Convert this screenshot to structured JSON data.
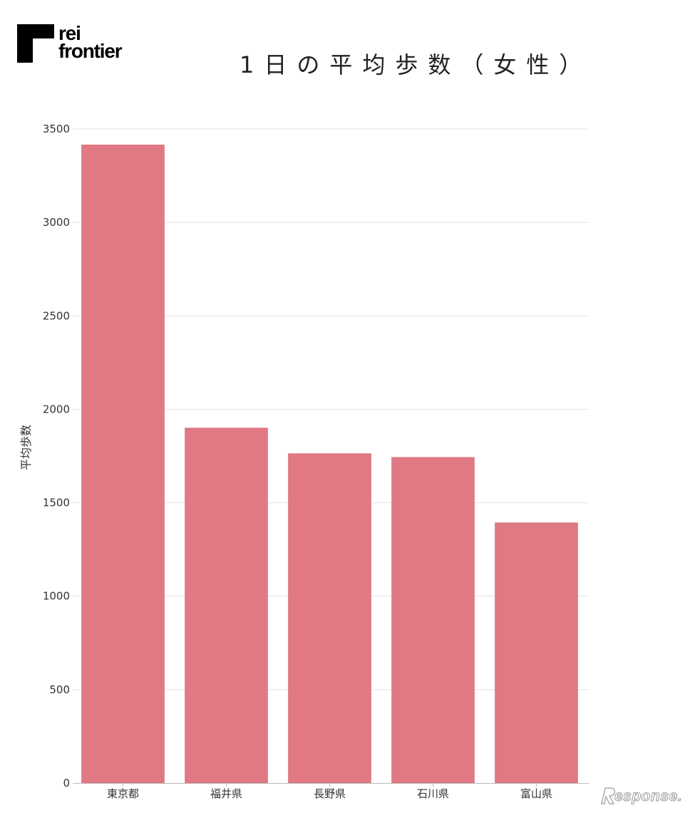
{
  "logo": {
    "line1": "rei",
    "line2": "frontier"
  },
  "watermark": {
    "text": "esponse."
  },
  "chart_data": {
    "type": "bar",
    "title": "1日の平均歩数（女性）",
    "xlabel": "",
    "ylabel": "平均歩数",
    "categories": [
      "東京都",
      "福井県",
      "長野県",
      "石川県",
      "富山県"
    ],
    "values": [
      3415,
      1900,
      1763,
      1743,
      1393
    ],
    "ylim": [
      0,
      3500
    ],
    "yticks": [
      0,
      500,
      1000,
      1500,
      2000,
      2500,
      3000,
      3500
    ],
    "grid": true,
    "legend": "none",
    "bar_color": "#e07983",
    "grid_color": "#e2e2e2",
    "axis_color": "#bbbbbb",
    "text_color": "#333333"
  }
}
